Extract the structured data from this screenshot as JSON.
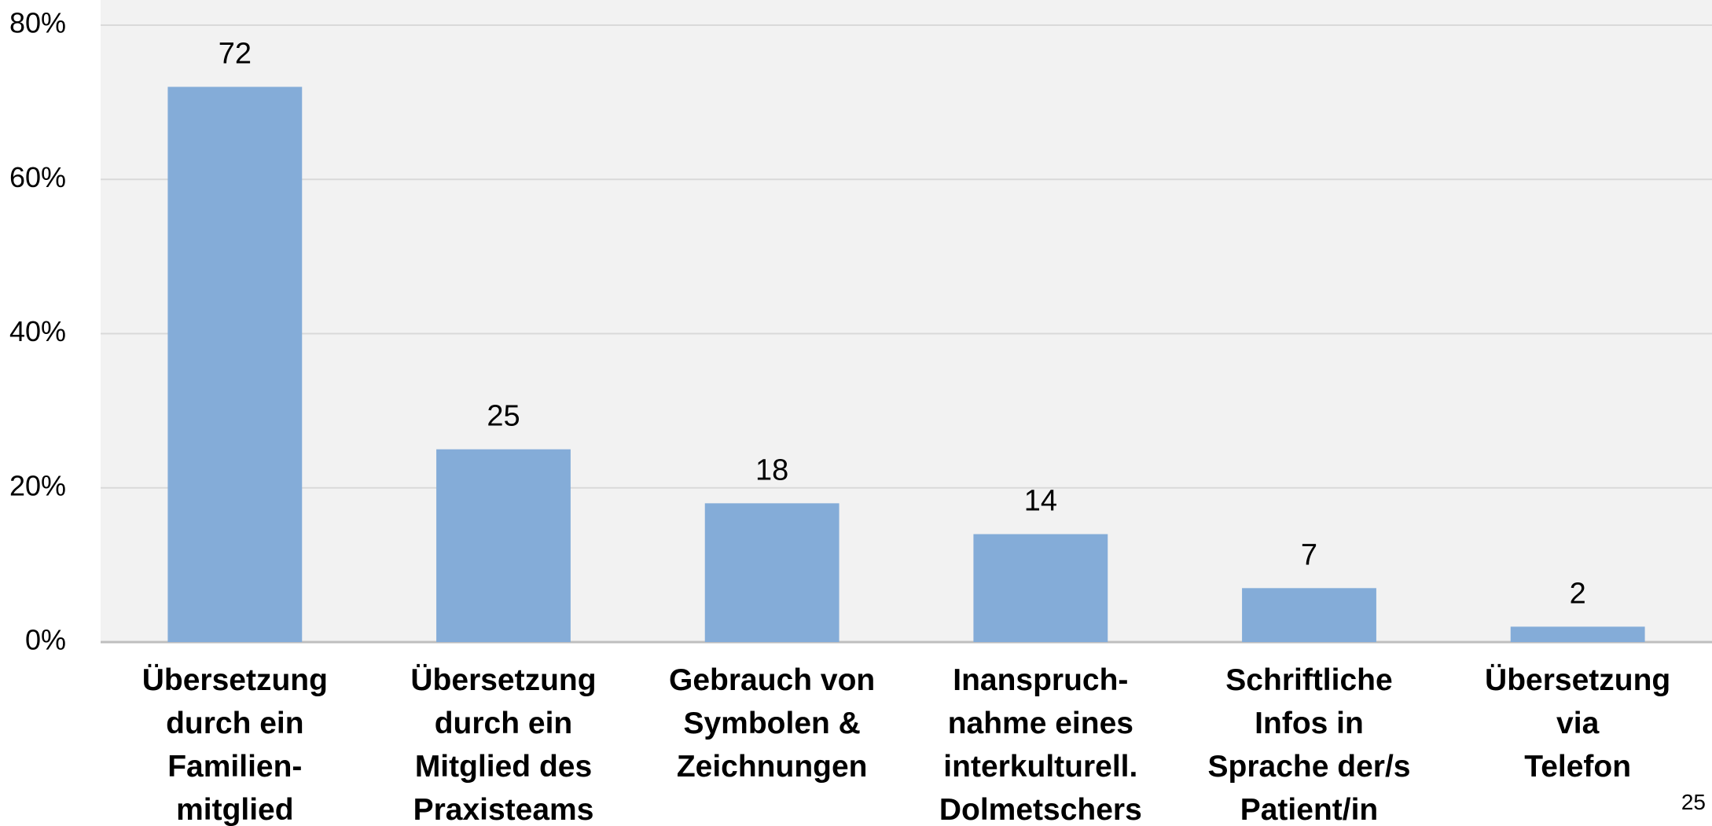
{
  "chart_data": {
    "type": "bar",
    "categories": [
      "Übersetzung\ndurch ein\nFamilien-\nmitglied",
      "Übersetzung\ndurch ein\nMitglied des\nPraxisteams",
      "Gebrauch von\nSymbolen &\nZeichnungen",
      "Inanspruch-\nnahme eines\ninterkulturell.\nDolmetschers",
      "Schriftliche\nInfos in\nSprache der/s\nPatient/in",
      "Übersetzung\nvia\nTelefon"
    ],
    "values": [
      72,
      25,
      18,
      14,
      7,
      2
    ],
    "color": "#84acd8",
    "ylim": [
      0,
      80
    ],
    "yticks": [
      {
        "value": 0,
        "label": "0%"
      },
      {
        "value": 20,
        "label": "20%"
      },
      {
        "value": 40,
        "label": "40%"
      },
      {
        "value": 60,
        "label": "60%"
      },
      {
        "value": 80,
        "label": "80%"
      }
    ],
    "grid": true
  },
  "page_number": "25"
}
